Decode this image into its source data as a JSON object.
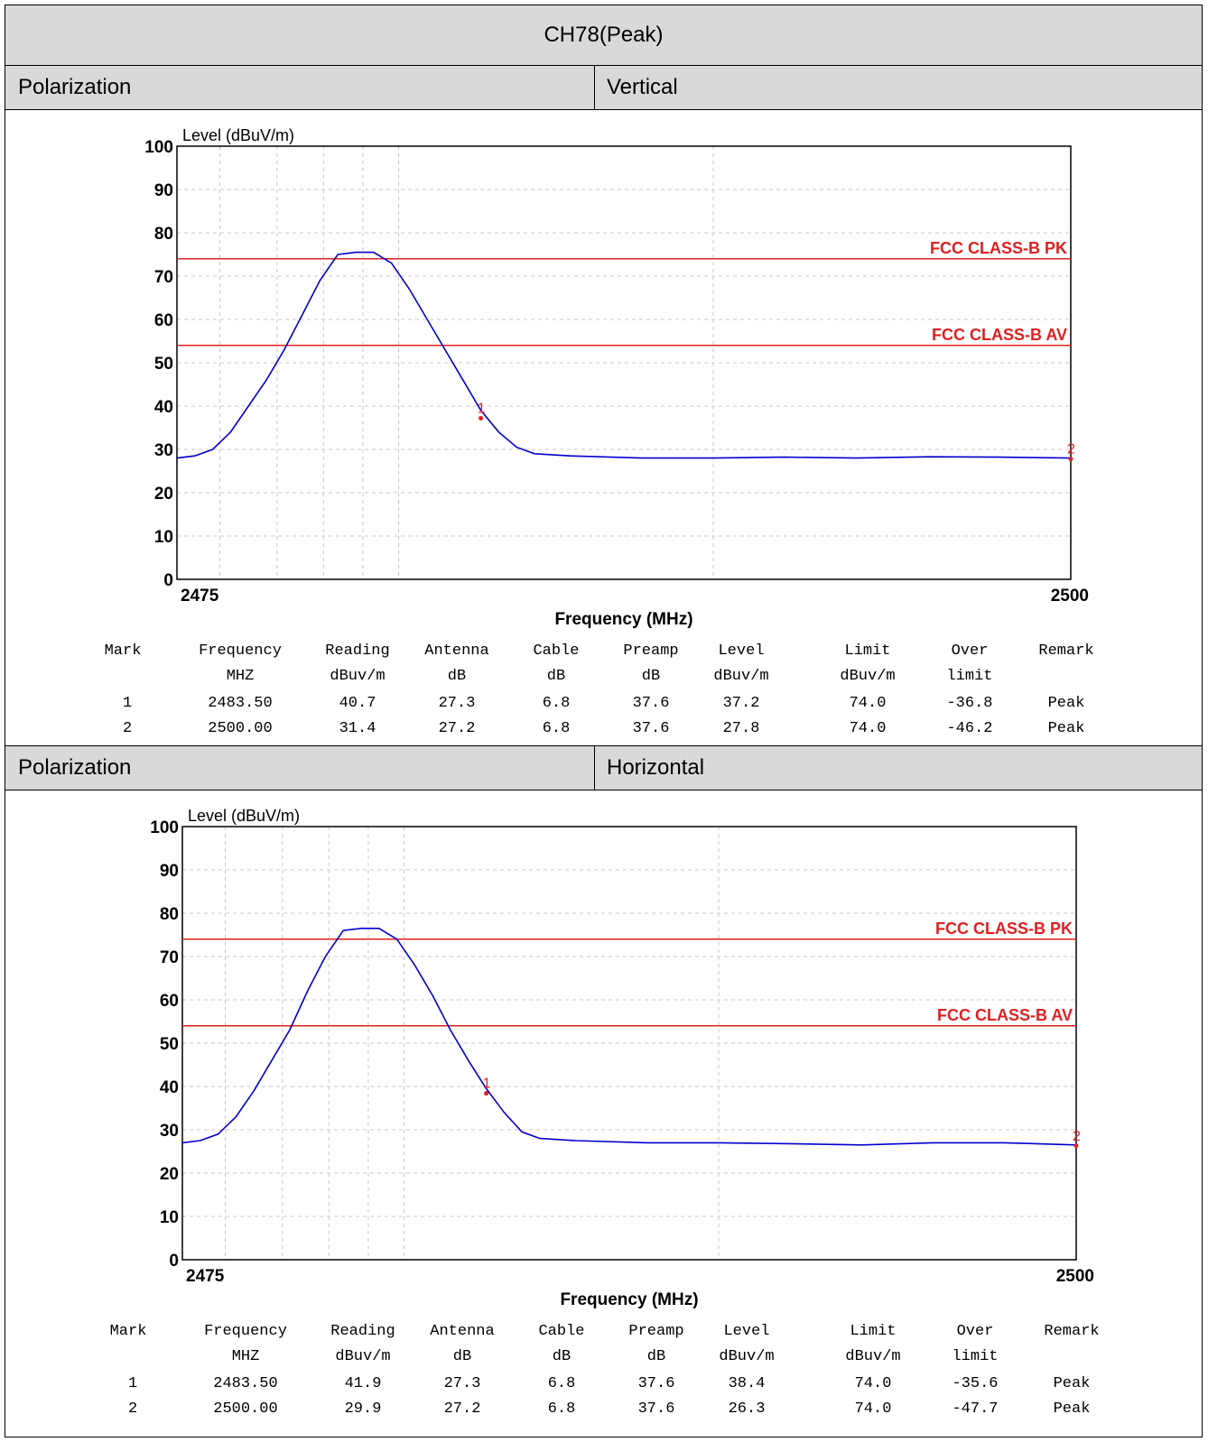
{
  "page_title": "CH78(Peak)",
  "sections": [
    {
      "polarization_label": "Polarization",
      "polarization_value": "Vertical",
      "table_headers": [
        [
          "Mark",
          ""
        ],
        [
          "Frequency",
          "MHZ"
        ],
        [
          "Reading",
          "dBuv/m"
        ],
        [
          "Antenna",
          "dB"
        ],
        [
          "Cable",
          "dB"
        ],
        [
          "Preamp",
          "dB"
        ],
        [
          "Level",
          "dBuv/m"
        ],
        [
          "Limit",
          "dBuv/m"
        ],
        [
          "Over",
          "limit"
        ],
        [
          "Remark",
          ""
        ]
      ],
      "table_rows": [
        [
          "1",
          "2483.50",
          "40.7",
          "27.3",
          "6.8",
          "37.6",
          "37.2",
          "74.0",
          "-36.8",
          "Peak"
        ],
        [
          "2",
          "2500.00",
          "31.4",
          "27.2",
          "6.8",
          "37.6",
          "27.8",
          "74.0",
          "-46.2",
          "Peak"
        ]
      ]
    },
    {
      "polarization_label": "Polarization",
      "polarization_value": "Horizontal",
      "table_headers": [
        [
          "Mark",
          ""
        ],
        [
          "Frequency",
          "MHZ"
        ],
        [
          "Reading",
          "dBuv/m"
        ],
        [
          "Antenna",
          "dB"
        ],
        [
          "Cable",
          "dB"
        ],
        [
          "Preamp",
          "dB"
        ],
        [
          "Level",
          "dBuv/m"
        ],
        [
          "Limit",
          "dBuv/m"
        ],
        [
          "Over",
          "limit"
        ],
        [
          "Remark",
          ""
        ]
      ],
      "table_rows": [
        [
          "1",
          "2483.50",
          "41.9",
          "27.3",
          "6.8",
          "37.6",
          "38.4",
          "74.0",
          "-35.6",
          "Peak"
        ],
        [
          "2",
          "2500.00",
          "29.9",
          "27.2",
          "6.8",
          "37.6",
          "26.3",
          "74.0",
          "-47.7",
          "Peak"
        ]
      ]
    }
  ],
  "chart_data": [
    {
      "type": "line",
      "ylabel": "Level (dBuV/m)",
      "xlabel": "Frequency (MHz)",
      "xlim": [
        2475,
        2500
      ],
      "ylim": [
        0,
        100
      ],
      "xtick_labels": [
        "2475",
        "2500"
      ],
      "ytick_labels": [
        "0",
        "10",
        "20",
        "30",
        "40",
        "50",
        "60",
        "70",
        "80",
        "90",
        "100"
      ],
      "limit_lines": [
        {
          "name": "FCC CLASS-B PK",
          "value": 74
        },
        {
          "name": "FCC CLASS-B AV",
          "value": 54
        }
      ],
      "series": [
        {
          "x": [
            2475,
            2475.5,
            2476,
            2476.5,
            2477,
            2477.5,
            2478,
            2478.5,
            2479,
            2479.5,
            2480,
            2480.5,
            2481,
            2481.5,
            2482,
            2482.5,
            2483,
            2483.5,
            2484,
            2484.5,
            2485,
            2486,
            2488,
            2490,
            2492,
            2494,
            2496,
            2498,
            2500
          ],
          "values": [
            28,
            28.5,
            30,
            34,
            40,
            46,
            53,
            61,
            69,
            75,
            75.5,
            75.5,
            73,
            67,
            60,
            53,
            46,
            39,
            34,
            30.5,
            29,
            28.5,
            28,
            28,
            28.2,
            28,
            28.3,
            28.2,
            28
          ]
        }
      ],
      "markers": [
        {
          "label": "1",
          "x": 2483.5,
          "y": 37.2
        },
        {
          "label": "2",
          "x": 2500,
          "y": 27.8
        }
      ],
      "color_trace": "#0000cc",
      "color_limit": "#e02020",
      "grid": true
    },
    {
      "type": "line",
      "ylabel": "Level (dBuV/m)",
      "xlabel": "Frequency (MHz)",
      "xlim": [
        2475,
        2500
      ],
      "ylim": [
        0,
        100
      ],
      "xtick_labels": [
        "2475",
        "2500"
      ],
      "ytick_labels": [
        "0",
        "10",
        "20",
        "30",
        "40",
        "50",
        "60",
        "70",
        "80",
        "90",
        "100"
      ],
      "limit_lines": [
        {
          "name": "FCC CLASS-B PK",
          "value": 74
        },
        {
          "name": "FCC CLASS-B AV",
          "value": 54
        }
      ],
      "series": [
        {
          "x": [
            2475,
            2475.5,
            2476,
            2476.5,
            2477,
            2477.5,
            2478,
            2478.5,
            2479,
            2479.5,
            2480,
            2480.5,
            2481,
            2481.5,
            2482,
            2482.5,
            2483,
            2483.5,
            2484,
            2484.5,
            2485,
            2486,
            2488,
            2490,
            2492,
            2494,
            2496,
            2498,
            2500
          ],
          "values": [
            27,
            27.5,
            29,
            33,
            39,
            46,
            53,
            62,
            70,
            76,
            76.5,
            76.5,
            74,
            68,
            61,
            53,
            46,
            39.5,
            34,
            29.5,
            28,
            27.5,
            27,
            27,
            26.8,
            26.5,
            27,
            27,
            26.5
          ]
        }
      ],
      "markers": [
        {
          "label": "1",
          "x": 2483.5,
          "y": 38.4
        },
        {
          "label": "2",
          "x": 2500,
          "y": 26.3
        }
      ],
      "color_trace": "#0000cc",
      "color_limit": "#e02020",
      "grid": true
    }
  ]
}
